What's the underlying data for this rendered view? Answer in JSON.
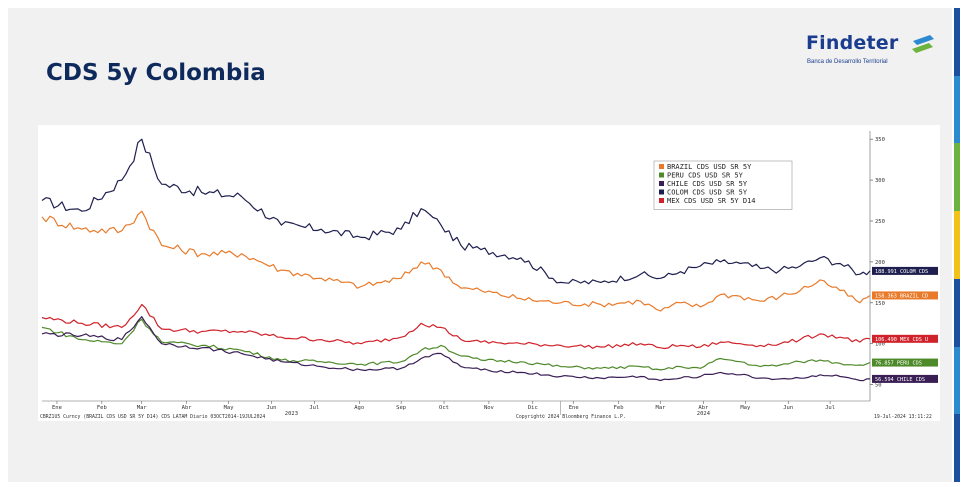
{
  "slide": {
    "title": "CDS 5y Colombia"
  },
  "logo": {
    "name": "Findeter",
    "subtitle": "Banca de Desarrollo Territorial"
  },
  "colors": {
    "brand_blue": "#1a3d8f",
    "strip": [
      "#1b4fa0",
      "#2c8ad1",
      "#6cb43f",
      "#f2c21b",
      "#1b4fa0",
      "#2c8ad1",
      "#1b4fa0"
    ]
  },
  "footer": {
    "left": "CBRZ1U5 Curncy (BRAZIL CDS USD SR 5Y D14) CDS LATAM  Diario 03OCT2014-19JUL2024",
    "center": "Copyright© 2024 Bloomberg Finance L.P.",
    "right": "19-Jul-2024 13:11:22"
  },
  "chart_data": {
    "type": "line",
    "x_unit": "weeks from 2023-01-02",
    "x_range": [
      0,
      83
    ],
    "ylim": [
      30,
      360
    ],
    "yticks": [
      50,
      100,
      150,
      200,
      250,
      300,
      350
    ],
    "month_ticks": [
      {
        "label": "Ene",
        "x": 1.5
      },
      {
        "label": "Feb",
        "x": 6
      },
      {
        "label": "Mar",
        "x": 10
      },
      {
        "label": "Abr",
        "x": 14.5
      },
      {
        "label": "May",
        "x": 18.7
      },
      {
        "label": "Jun",
        "x": 23
      },
      {
        "label": "Jul",
        "x": 27.3
      },
      {
        "label": "Ago",
        "x": 31.8
      },
      {
        "label": "Sep",
        "x": 36
      },
      {
        "label": "Oct",
        "x": 40.3
      },
      {
        "label": "Nov",
        "x": 44.8
      },
      {
        "label": "Dic",
        "x": 49.2
      },
      {
        "label": "Ene",
        "x": 53.3
      },
      {
        "label": "Feb",
        "x": 57.8
      },
      {
        "label": "Mar",
        "x": 62
      },
      {
        "label": "Abr",
        "x": 66.3
      },
      {
        "label": "May",
        "x": 70.5
      },
      {
        "label": "Jun",
        "x": 74.8
      },
      {
        "label": "Jul",
        "x": 79
      }
    ],
    "year_labels": [
      {
        "label": "2023",
        "x": 25
      },
      {
        "label": "2024",
        "x": 66.3
      }
    ],
    "x": [
      0,
      4,
      8,
      10,
      12,
      16,
      20,
      24,
      28,
      32,
      36,
      38,
      40,
      42,
      44,
      48,
      52,
      56,
      60,
      62,
      64,
      66,
      68,
      70,
      72,
      74,
      76,
      78,
      80,
      82,
      83
    ],
    "series": [
      {
        "name": "COLOM CDS USD SR 5Y",
        "color": "#1f1f4f",
        "values": [
          275,
          262,
          300,
          350,
          295,
          285,
          280,
          245,
          240,
          230,
          240,
          265,
          245,
          220,
          215,
          205,
          175,
          175,
          185,
          180,
          188,
          195,
          200,
          198,
          192,
          190,
          195,
          205,
          198,
          185,
          189
        ]
      },
      {
        "name": "BRAZIL CDS USD SR 5Y",
        "color": "#e87a2a",
        "values": [
          255,
          240,
          238,
          262,
          220,
          210,
          210,
          190,
          180,
          170,
          180,
          200,
          190,
          168,
          165,
          155,
          150,
          148,
          152,
          140,
          150,
          145,
          160,
          158,
          152,
          158,
          165,
          178,
          165,
          150,
          159
        ]
      },
      {
        "name": "MEX CDS USD SR 5Y D14",
        "color": "#d0222a",
        "values": [
          132,
          125,
          120,
          148,
          118,
          115,
          115,
          108,
          105,
          100,
          108,
          125,
          120,
          105,
          102,
          100,
          98,
          96,
          100,
          95,
          98,
          96,
          102,
          100,
          98,
          100,
          105,
          112,
          108,
          102,
          106
        ]
      },
      {
        "name": "PERU CDS USD SR 5Y",
        "color": "#4f8a2a",
        "values": [
          120,
          105,
          100,
          130,
          102,
          98,
          92,
          80,
          78,
          75,
          78,
          92,
          98,
          85,
          80,
          78,
          72,
          70,
          72,
          68,
          72,
          70,
          82,
          78,
          72,
          74,
          78,
          80,
          76,
          74,
          77
        ]
      },
      {
        "name": "CHILE CDS USD SR 5Y",
        "color": "#3a1f55",
        "values": [
          112,
          110,
          105,
          133,
          100,
          95,
          88,
          78,
          72,
          68,
          70,
          82,
          88,
          72,
          68,
          65,
          60,
          58,
          60,
          55,
          58,
          60,
          65,
          62,
          58,
          57,
          58,
          62,
          60,
          55,
          57
        ]
      }
    ],
    "legend": {
      "placement": "top-right",
      "entries": [
        {
          "label": "BRAZIL CDS USD SR 5Y",
          "color": "#e87a2a"
        },
        {
          "label": "PERU CDS USD SR 5Y",
          "color": "#4f8a2a"
        },
        {
          "label": "CHILE CDS USD SR 5Y",
          "color": "#3a1f55"
        },
        {
          "label": "COLOM CDS USD SR 5Y",
          "color": "#1f1f4f"
        },
        {
          "label": "MEX CDS USD SR 5Y D14",
          "color": "#d0222a"
        }
      ]
    },
    "end_labels": [
      {
        "text": "188.991 COLOM CDS",
        "value": 189,
        "color": "#1f1f4f"
      },
      {
        "text": "158.363 BRAZIL CD",
        "value": 159,
        "color": "#e87a2a"
      },
      {
        "text": "106.490 MEX CDS U",
        "value": 106,
        "color": "#d0222a"
      },
      {
        "text": "76.857  PERU CDS",
        "value": 77,
        "color": "#4f8a2a"
      },
      {
        "text": "56.594  CHILE CDS",
        "value": 57,
        "color": "#3a1f55"
      }
    ]
  }
}
